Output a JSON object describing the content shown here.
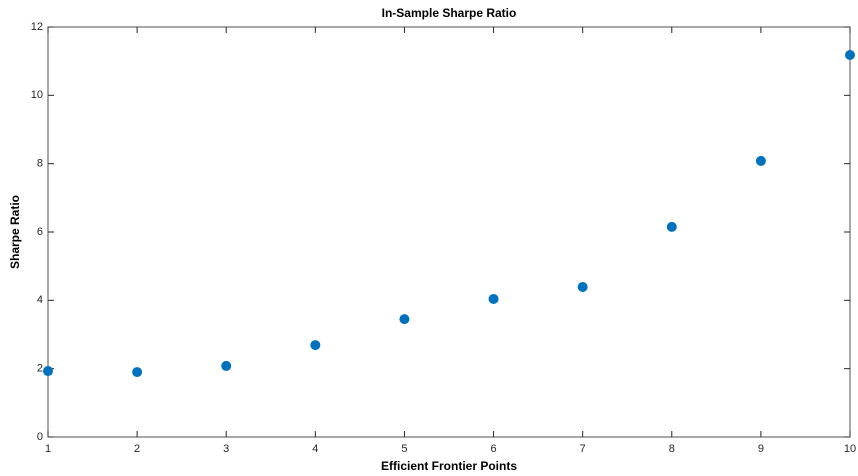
{
  "chart_data": {
    "type": "scatter",
    "title": "In-Sample Sharpe Ratio",
    "x_label": "Efficient Frontier Points",
    "y_label": "Sharpe Ratio",
    "series": [
      {
        "name": "Sharpe Ratio",
        "color": "#0072bd",
        "x": [
          1,
          2,
          3,
          4,
          5,
          6,
          7,
          8,
          9,
          10
        ],
        "values": [
          1.93,
          1.9,
          2.08,
          2.69,
          3.45,
          4.04,
          4.39,
          6.15,
          8.08,
          11.18
        ]
      }
    ],
    "xlim": [
      1,
      10
    ],
    "xticks": [
      1,
      2,
      3,
      4,
      5,
      6,
      7,
      8,
      9,
      10
    ],
    "ylim": [
      0,
      12
    ],
    "yticks": [
      0,
      2,
      4,
      6,
      8,
      10,
      12
    ]
  }
}
